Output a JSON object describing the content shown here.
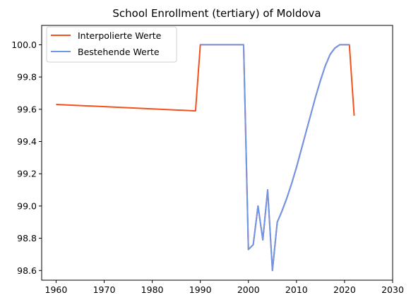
{
  "chart_data": {
    "type": "line",
    "title": "School Enrollment (tertiary) of Moldova",
    "xlabel": "",
    "ylabel": "",
    "xlim": [
      1957,
      2030
    ],
    "ylim": [
      98.54,
      100.12
    ],
    "x_ticks": [
      1960,
      1970,
      1980,
      1990,
      2000,
      2010,
      2020,
      2030
    ],
    "y_ticks": [
      98.6,
      98.8,
      99.0,
      99.2,
      99.4,
      99.6,
      99.8,
      100.0
    ],
    "y_tick_labels": [
      "98.6",
      "98.8",
      "99.0",
      "99.2",
      "99.4",
      "99.6",
      "99.8",
      "100.0"
    ],
    "grid": false,
    "legend_position": "top-left",
    "series": [
      {
        "name": "Interpolierte Werte",
        "color": "#f4511e",
        "x": [
          1960,
          1989,
          1990,
          1999,
          2000,
          2001,
          2002,
          2003,
          2004,
          2005,
          2006,
          2007,
          2008,
          2009,
          2010,
          2011,
          2012,
          2013,
          2014,
          2015,
          2016,
          2017,
          2018,
          2019,
          2020,
          2021,
          2022
        ],
        "y": [
          99.63,
          99.59,
          100.0,
          100.0,
          98.73,
          98.76,
          99.0,
          98.79,
          99.1,
          98.6,
          98.9,
          98.97,
          99.05,
          99.14,
          99.24,
          99.35,
          99.46,
          99.57,
          99.68,
          99.78,
          99.87,
          99.94,
          99.98,
          100.0,
          100.0,
          100.0,
          99.56
        ]
      },
      {
        "name": "Bestehende Werte",
        "color": "#6d97e8",
        "x": [
          1990,
          1999,
          2000,
          2001,
          2002,
          2003,
          2004,
          2005,
          2006,
          2007,
          2008,
          2009,
          2010,
          2011,
          2012,
          2013,
          2014,
          2015,
          2016,
          2017,
          2018,
          2019,
          2020,
          2021
        ],
        "y": [
          100.0,
          100.0,
          98.73,
          98.76,
          99.0,
          98.79,
          99.1,
          98.6,
          98.9,
          98.97,
          99.05,
          99.14,
          99.24,
          99.35,
          99.46,
          99.57,
          99.68,
          99.78,
          99.87,
          99.94,
          99.98,
          100.0,
          100.0,
          100.0
        ]
      }
    ]
  }
}
